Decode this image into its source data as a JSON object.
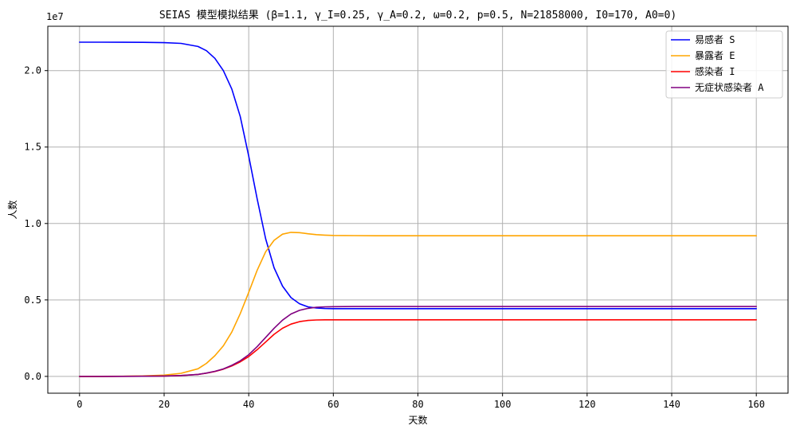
{
  "chart_data": {
    "type": "line",
    "title": "SEIAS 模型模拟结果 (β=1.1, γ_I=0.25, γ_A=0.2, ω=0.2, p=0.5, N=21858000, I0=170, A0=0)",
    "xlabel": "天数",
    "ylabel": "人数",
    "y_offset_label": "1e7",
    "xlim": [
      -7.5,
      167.5
    ],
    "ylim": [
      -1100000,
      22900000
    ],
    "x_ticks": [
      0,
      20,
      40,
      60,
      80,
      100,
      120,
      140,
      160
    ],
    "x_tick_labels": [
      "0",
      "20",
      "40",
      "60",
      "80",
      "100",
      "120",
      "140",
      "160"
    ],
    "y_ticks": [
      0,
      5000000,
      10000000,
      15000000,
      20000000
    ],
    "y_tick_labels": [
      "0.0",
      "0.5",
      "1.0",
      "1.5",
      "2.0"
    ],
    "grid": true,
    "legend_position": "upper-right",
    "x": [
      0,
      5,
      10,
      15,
      20,
      24,
      28,
      30,
      32,
      34,
      36,
      38,
      40,
      42,
      44,
      46,
      48,
      50,
      52,
      54,
      56,
      58,
      60,
      65,
      70,
      80,
      90,
      100,
      110,
      120,
      130,
      140,
      150,
      160
    ],
    "series": [
      {
        "name": "易感者 S",
        "color": "#0000ff",
        "values": [
          21858000,
          21857500,
          21856000,
          21850000,
          21830000,
          21780000,
          21580000,
          21300000,
          20800000,
          20000000,
          18800000,
          17000000,
          14400000,
          11600000,
          9000000,
          7100000,
          5900000,
          5150000,
          4750000,
          4550000,
          4470000,
          4440000,
          4430000,
          4430000,
          4430000,
          4430000,
          4430000,
          4430000,
          4430000,
          4430000,
          4430000,
          4430000,
          4430000,
          4430000
        ]
      },
      {
        "name": "暴露者 E",
        "color": "#ffa500",
        "values": [
          0,
          2000,
          8000,
          30000,
          80000,
          200000,
          500000,
          850000,
          1350000,
          2000000,
          2900000,
          4100000,
          5500000,
          6950000,
          8150000,
          8900000,
          9300000,
          9420000,
          9400000,
          9330000,
          9270000,
          9240000,
          9220000,
          9210000,
          9200000,
          9200000,
          9200000,
          9200000,
          9200000,
          9200000,
          9200000,
          9200000,
          9200000,
          9200000
        ]
      },
      {
        "name": "感染者 I",
        "color": "#ff0000",
        "values": [
          0,
          500,
          2000,
          8000,
          25000,
          55000,
          130000,
          210000,
          320000,
          470000,
          680000,
          950000,
          1300000,
          1750000,
          2250000,
          2750000,
          3150000,
          3420000,
          3580000,
          3660000,
          3690000,
          3700000,
          3700000,
          3700000,
          3700000,
          3700000,
          3700000,
          3700000,
          3700000,
          3700000,
          3700000,
          3700000,
          3700000,
          3700000
        ]
      },
      {
        "name": "无症状感染者 A",
        "color": "#800080",
        "values": [
          0,
          500,
          2000,
          8000,
          25000,
          55000,
          130000,
          215000,
          330000,
          490000,
          720000,
          1020000,
          1420000,
          1950000,
          2550000,
          3150000,
          3680000,
          4080000,
          4320000,
          4450000,
          4520000,
          4550000,
          4560000,
          4570000,
          4570000,
          4570000,
          4570000,
          4570000,
          4570000,
          4570000,
          4570000,
          4570000,
          4570000,
          4570000
        ]
      }
    ]
  }
}
